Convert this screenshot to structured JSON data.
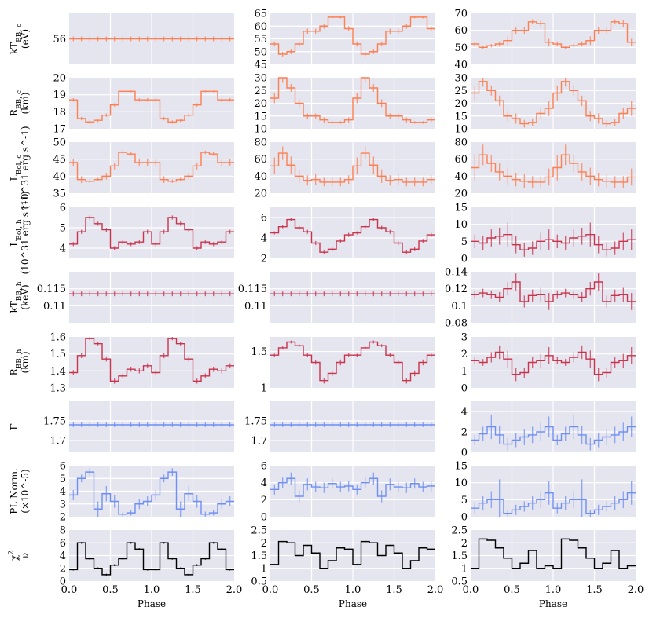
{
  "colors": {
    "bg": "#E5E5EF",
    "grid": "#FFFFFF",
    "orange": "#FF7F50",
    "red": "#C9334C",
    "blue": "#6F8FF5",
    "black": "#000000"
  },
  "x_label": "Phase",
  "x_ticks": [
    "0.0",
    "0.5",
    "1.0",
    "1.5",
    "2.0"
  ],
  "row_labels": [
    {
      "main": "kT",
      "sub": "BB, c",
      "unit": "(eV)"
    },
    {
      "main": "R",
      "sub": "BB, c",
      "unit": "(km)"
    },
    {
      "main": "L",
      "sub": "Bol, c",
      "unit": "(10^31 erg s^-1)"
    },
    {
      "main": "L",
      "sub": "Bol, h",
      "unit": "(10^31 erg s^-1)"
    },
    {
      "main": "kT",
      "sub": "BB, h",
      "unit": "(keV)"
    },
    {
      "main": "R",
      "sub": "BB, h",
      "unit": "(km)"
    },
    {
      "main": "Γ",
      "sub": "",
      "unit": ""
    },
    {
      "main": "PL Norm.",
      "sub": "",
      "unit": "(×10^-5)"
    },
    {
      "main": "χ",
      "sub": "2",
      "unit": "ν"
    }
  ],
  "chart_data": {
    "type": "line",
    "style": "step-with-errorbars",
    "x_range": [
      0,
      2
    ],
    "xlabel": "Phase",
    "x_bin_width": 0.1,
    "panels": [
      {
        "row": 0,
        "col": 0,
        "color": "orange",
        "ylim": [
          53,
          59
        ],
        "yticks": [
          "56"
        ],
        "ytick_vals": [
          56
        ],
        "constant": 56
      },
      {
        "row": 0,
        "col": 1,
        "color": "orange",
        "ylim": [
          45,
          65
        ],
        "yticks": [
          "45",
          "50",
          "55",
          "60",
          "65"
        ],
        "ytick_vals": [
          45,
          50,
          55,
          60,
          65
        ],
        "values": [
          53,
          49,
          50,
          53,
          58,
          58,
          60,
          63.5,
          63.5,
          59
        ],
        "errors": [
          1,
          1,
          1,
          1,
          1,
          1,
          1,
          0.5,
          0.5,
          1
        ]
      },
      {
        "row": 0,
        "col": 2,
        "color": "orange",
        "ylim": [
          40,
          70
        ],
        "yticks": [
          "40",
          "50",
          "60",
          "70"
        ],
        "ytick_vals": [
          40,
          50,
          60,
          70
        ],
        "values": [
          52,
          50,
          51,
          52,
          54,
          60,
          60,
          65,
          64,
          53
        ],
        "errors": [
          1.5,
          1,
          1,
          1.5,
          2.5,
          2,
          2,
          1.5,
          2,
          2
        ]
      },
      {
        "row": 1,
        "col": 0,
        "color": "orange",
        "ylim": [
          17,
          20
        ],
        "yticks": [
          "17",
          "18",
          "19",
          "20"
        ],
        "ytick_vals": [
          17,
          18,
          19,
          20
        ],
        "values": [
          18.7,
          17.6,
          17.4,
          17.5,
          17.8,
          18.4,
          19.2,
          19.2,
          18.7,
          18.7
        ],
        "errors": [
          0.1,
          0.1,
          0.1,
          0.1,
          0.1,
          0.1,
          0.05,
          0.05,
          0.1,
          0.1
        ]
      },
      {
        "row": 1,
        "col": 1,
        "color": "orange",
        "ylim": [
          10,
          30
        ],
        "yticks": [
          "10",
          "15",
          "20",
          "25",
          "30"
        ],
        "ytick_vals": [
          10,
          15,
          20,
          25,
          30
        ],
        "values": [
          22,
          30,
          26,
          20,
          15,
          15,
          13.5,
          12.5,
          12.5,
          13.5
        ],
        "errors": [
          2,
          2,
          1.5,
          1.5,
          1,
          1,
          1,
          0.5,
          0.5,
          1
        ]
      },
      {
        "row": 1,
        "col": 2,
        "color": "orange",
        "ylim": [
          10,
          30
        ],
        "yticks": [
          "10",
          "15",
          "20",
          "25",
          "30"
        ],
        "ytick_vals": [
          10,
          15,
          20,
          25,
          30
        ],
        "values": [
          24,
          28.5,
          25,
          21,
          15,
          14,
          12,
          12.5,
          16,
          18
        ],
        "errors": [
          3,
          2,
          2,
          2,
          2,
          2,
          1.5,
          1.5,
          2,
          3
        ]
      },
      {
        "row": 2,
        "col": 0,
        "color": "orange",
        "ylim": [
          35,
          50
        ],
        "yticks": [
          "35",
          "40",
          "45",
          "50"
        ],
        "ytick_vals": [
          35,
          40,
          45,
          50
        ],
        "values": [
          44,
          39,
          38.5,
          39,
          40,
          43,
          47,
          46.5,
          44,
          44
        ],
        "errors": [
          1,
          1,
          0.5,
          0.5,
          1,
          1,
          0.5,
          0.5,
          1,
          1
        ]
      },
      {
        "row": 2,
        "col": 1,
        "color": "orange",
        "ylim": [
          20,
          80
        ],
        "yticks": [
          "20",
          "40",
          "60",
          "80"
        ],
        "ytick_vals": [
          20,
          40,
          60,
          80
        ],
        "values": [
          52,
          67,
          53,
          40,
          35,
          36,
          33,
          33,
          33,
          36
        ],
        "errors": [
          10,
          8,
          10,
          8,
          6,
          6,
          5,
          5,
          5,
          5
        ]
      },
      {
        "row": 2,
        "col": 2,
        "color": "orange",
        "ylim": [
          20,
          80
        ],
        "yticks": [
          "20",
          "40",
          "60",
          "80"
        ],
        "ytick_vals": [
          20,
          40,
          60,
          80
        ],
        "values": [
          50,
          65,
          55,
          45,
          40,
          36,
          34,
          33,
          33,
          39
        ],
        "errors": [
          15,
          12,
          10,
          10,
          10,
          8,
          8,
          7,
          7,
          10
        ]
      },
      {
        "row": 3,
        "col": 0,
        "color": "red",
        "ylim": [
          3.5,
          6
        ],
        "yticks": [
          "4",
          "5",
          "6"
        ],
        "ytick_vals": [
          4,
          5,
          6
        ],
        "values": [
          4.2,
          4.8,
          5.5,
          5.2,
          4.9,
          4.0,
          4.3,
          4.2,
          4.3,
          4.8
        ],
        "errors": [
          0.1,
          0.1,
          0.1,
          0.1,
          0.1,
          0.1,
          0.1,
          0.1,
          0.1,
          0.1
        ]
      },
      {
        "row": 3,
        "col": 1,
        "color": "red",
        "ylim": [
          2,
          7
        ],
        "yticks": [
          "2",
          "4",
          "6"
        ],
        "ytick_vals": [
          2,
          4,
          6
        ],
        "values": [
          4.5,
          5.1,
          5.8,
          5.0,
          4.6,
          3.5,
          2.6,
          2.9,
          3.7,
          4.3
        ],
        "errors": [
          0.15,
          0.15,
          0.15,
          0.2,
          0.2,
          0.2,
          0.2,
          0.2,
          0.2,
          0.2
        ]
      },
      {
        "row": 3,
        "col": 2,
        "color": "red",
        "ylim": [
          0,
          15
        ],
        "yticks": [
          "0",
          "5",
          "10",
          "15"
        ],
        "ytick_vals": [
          0,
          5,
          10,
          15
        ],
        "values": [
          5,
          4.5,
          6,
          6.5,
          7,
          4,
          2.5,
          3,
          5,
          5.5
        ],
        "errors": [
          2,
          2,
          2.5,
          2.5,
          3.5,
          2.5,
          2,
          2,
          2.5,
          3
        ]
      },
      {
        "row": 4,
        "col": 0,
        "color": "red",
        "ylim": [
          0.105,
          0.12
        ],
        "yticks": [
          "0.11",
          "0.115"
        ],
        "ytick_vals": [
          0.11,
          0.115
        ],
        "constant": 0.1135
      },
      {
        "row": 4,
        "col": 1,
        "color": "red",
        "ylim": [
          0.105,
          0.12
        ],
        "yticks": [
          "0.11",
          "0.115"
        ],
        "ytick_vals": [
          0.11,
          0.115
        ],
        "constant": 0.1135
      },
      {
        "row": 4,
        "col": 2,
        "color": "red",
        "ylim": [
          0.08,
          0.14
        ],
        "yticks": [
          "0.08",
          "0.1",
          "0.12",
          "0.14"
        ],
        "ytick_vals": [
          0.08,
          0.1,
          0.12,
          0.14
        ],
        "values": [
          0.113,
          0.115,
          0.113,
          0.11,
          0.12,
          0.128,
          0.105,
          0.112,
          0.113,
          0.105
        ],
        "errors": [
          0.005,
          0.005,
          0.005,
          0.006,
          0.008,
          0.01,
          0.007,
          0.007,
          0.008,
          0.01
        ]
      },
      {
        "row": 5,
        "col": 0,
        "color": "red",
        "ylim": [
          1.3,
          1.6
        ],
        "yticks": [
          "1.3",
          "1.4",
          "1.5",
          "1.6"
        ],
        "ytick_vals": [
          1.3,
          1.4,
          1.5,
          1.6
        ],
        "values": [
          1.39,
          1.49,
          1.59,
          1.56,
          1.47,
          1.34,
          1.37,
          1.41,
          1.4,
          1.43
        ],
        "errors": [
          0.015,
          0.015,
          0.01,
          0.01,
          0.015,
          0.015,
          0.015,
          0.015,
          0.015,
          0.015
        ]
      },
      {
        "row": 5,
        "col": 1,
        "color": "red",
        "ylim": [
          1,
          1.7
        ],
        "yticks": [
          "1",
          "1.5"
        ],
        "ytick_vals": [
          1,
          1.5
        ],
        "values": [
          1.45,
          1.55,
          1.63,
          1.58,
          1.45,
          1.35,
          1.1,
          1.2,
          1.35,
          1.45
        ],
        "errors": [
          0.02,
          0.02,
          0.02,
          0.02,
          0.03,
          0.03,
          0.04,
          0.04,
          0.04,
          0.03
        ]
      },
      {
        "row": 5,
        "col": 2,
        "color": "red",
        "ylim": [
          0,
          3
        ],
        "yticks": [
          "0",
          "1",
          "2",
          "3"
        ],
        "ytick_vals": [
          0,
          1,
          2,
          3
        ],
        "values": [
          1.6,
          1.5,
          1.8,
          2.1,
          1.7,
          0.8,
          0.9,
          1.5,
          1.6,
          1.9
        ],
        "errors": [
          0.2,
          0.2,
          0.3,
          0.4,
          0.5,
          0.4,
          0.3,
          0.3,
          0.4,
          0.5
        ]
      },
      {
        "row": 6,
        "col": 0,
        "color": "blue",
        "ylim": [
          1.67,
          1.8
        ],
        "yticks": [
          "1.7",
          "1.75"
        ],
        "ytick_vals": [
          1.7,
          1.75
        ],
        "constant": 1.74
      },
      {
        "row": 6,
        "col": 1,
        "color": "blue",
        "ylim": [
          1.67,
          1.8
        ],
        "yticks": [
          "1.7",
          "1.75"
        ],
        "ytick_vals": [
          1.7,
          1.75
        ],
        "constant": 1.74
      },
      {
        "row": 6,
        "col": 2,
        "color": "blue",
        "ylim": [
          0,
          5
        ],
        "yticks": [
          "0",
          "2",
          "4"
        ],
        "ytick_vals": [
          0,
          2,
          4
        ],
        "values": [
          1.2,
          1.8,
          2.5,
          1.7,
          0.8,
          1.2,
          1.5,
          1.7,
          2.0,
          2.5
        ],
        "errors": [
          0.5,
          0.7,
          1.2,
          0.9,
          0.6,
          0.7,
          0.8,
          0.8,
          0.9,
          1.0
        ]
      },
      {
        "row": 7,
        "col": 0,
        "color": "blue",
        "ylim": [
          2,
          6
        ],
        "yticks": [
          "2",
          "3",
          "4",
          "5",
          "6"
        ],
        "ytick_vals": [
          2,
          3,
          4,
          5,
          6
        ],
        "values": [
          3.7,
          5.0,
          5.5,
          2.6,
          3.8,
          3.2,
          2.2,
          2.3,
          3.0,
          3.2
        ],
        "errors": [
          0.4,
          0.3,
          0.3,
          0.6,
          0.6,
          0.5,
          0.2,
          0.2,
          0.4,
          0.4
        ]
      },
      {
        "row": 7,
        "col": 1,
        "color": "blue",
        "ylim": [
          0,
          6
        ],
        "yticks": [
          "0",
          "2",
          "4",
          "6"
        ],
        "ytick_vals": [
          0,
          2,
          4,
          6
        ],
        "values": [
          3.2,
          4.0,
          4.5,
          2.4,
          3.8,
          3.5,
          3.4,
          3.9,
          3.5,
          3.6
        ],
        "errors": [
          0.6,
          0.6,
          0.7,
          0.7,
          0.7,
          0.6,
          0.6,
          0.6,
          0.6,
          0.6
        ]
      },
      {
        "row": 7,
        "col": 2,
        "color": "blue",
        "ylim": [
          0,
          15
        ],
        "yticks": [
          "0",
          "5",
          "10",
          "15"
        ],
        "ytick_vals": [
          0,
          5,
          10,
          15
        ],
        "values": [
          2.5,
          4.0,
          5.0,
          5.0,
          1.0,
          2.0,
          3.0,
          4.0,
          5.0,
          7.0
        ],
        "errors": [
          1.5,
          2,
          2.5,
          6,
          1,
          1.5,
          1.5,
          2,
          2.5,
          3.5
        ]
      },
      {
        "row": 8,
        "col": 0,
        "color": "black",
        "ylim": [
          0,
          8
        ],
        "yticks": [
          "0",
          "2",
          "4",
          "6",
          "8"
        ],
        "ytick_vals": [
          0,
          2,
          4,
          6,
          8
        ],
        "values": [
          1.8,
          6.0,
          3.5,
          2.0,
          1.0,
          2.5,
          3.5,
          6.0,
          5.0,
          1.8
        ],
        "errors": [
          0.15,
          0.15,
          0.15,
          0.15,
          0.15,
          0.15,
          0.15,
          0.15,
          0.15,
          0.15
        ]
      },
      {
        "row": 8,
        "col": 1,
        "color": "black",
        "ylim": [
          0.5,
          2.5
        ],
        "yticks": [
          "0.5",
          "1",
          "1.5",
          "2",
          "2.5"
        ],
        "ytick_vals": [
          0.5,
          1,
          1.5,
          2,
          2.5
        ],
        "values": [
          1.15,
          2.05,
          2.0,
          1.5,
          1.9,
          1.6,
          1.0,
          1.3,
          1.8,
          1.75
        ],
        "errors": [
          0.02,
          0.02,
          0.02,
          0.02,
          0.02,
          0.02,
          0.02,
          0.02,
          0.02,
          0.02
        ]
      },
      {
        "row": 8,
        "col": 2,
        "color": "black",
        "ylim": [
          0.5,
          2.5
        ],
        "yticks": [
          "0.5",
          "1",
          "1.5",
          "2",
          "2.5"
        ],
        "ytick_vals": [
          0.5,
          1,
          1.5,
          2,
          2.5
        ],
        "values": [
          1.0,
          2.15,
          2.1,
          1.8,
          1.4,
          1.0,
          1.2,
          1.7,
          1.0,
          1.1
        ],
        "errors": [
          0.02,
          0.02,
          0.02,
          0.02,
          0.02,
          0.02,
          0.02,
          0.02,
          0.02,
          0.02
        ]
      }
    ]
  }
}
